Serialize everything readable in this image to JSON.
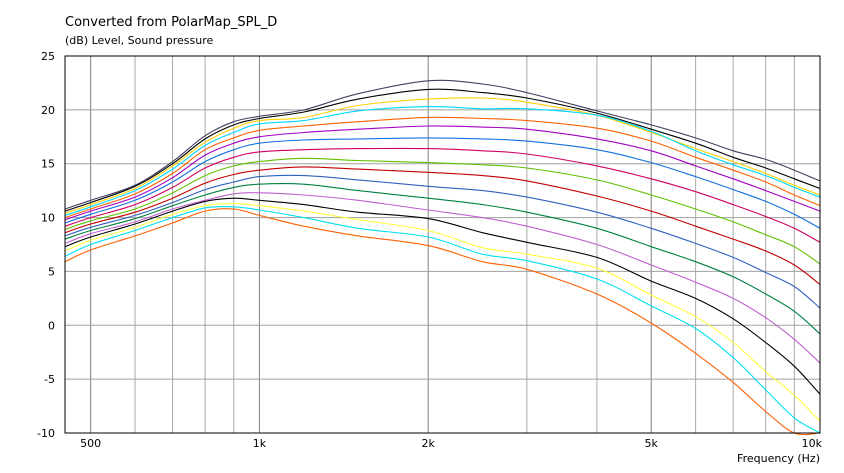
{
  "chart_data": {
    "type": "line",
    "title": "Converted from PolarMap_SPL_D",
    "ylabel": "(dB)  Level, Sound pressure",
    "xlabel": "Frequency  (Hz)",
    "xscale": "log",
    "xlim": [
      450,
      10000
    ],
    "ylim": [
      -10,
      25
    ],
    "grid": true,
    "legend": "none",
    "yticks": [
      -10,
      -5,
      0,
      5,
      10,
      15,
      20,
      25
    ],
    "xticks": [
      {
        "value": 500,
        "label": "500"
      },
      {
        "value": 1000,
        "label": "1k"
      },
      {
        "value": 2000,
        "label": "2k"
      },
      {
        "value": 5000,
        "label": "5k"
      },
      {
        "value": 10000,
        "label": "10k"
      }
    ],
    "x": [
      450,
      500,
      600,
      700,
      800,
      900,
      1000,
      1200,
      1500,
      2000,
      2500,
      3000,
      4000,
      5000,
      6000,
      7000,
      8000,
      9000,
      10000
    ],
    "series": [
      {
        "color": "#404060",
        "values": [
          10.8,
          11.6,
          13.0,
          15.2,
          17.6,
          18.9,
          19.4,
          20.0,
          21.5,
          22.7,
          22.4,
          21.6,
          19.9,
          18.6,
          17.4,
          16.2,
          15.4,
          14.4,
          13.4
        ]
      },
      {
        "color": "#000000",
        "values": [
          10.6,
          11.4,
          12.9,
          15.0,
          17.3,
          18.6,
          19.2,
          19.8,
          21.0,
          21.9,
          21.6,
          21.1,
          19.7,
          18.2,
          16.9,
          15.6,
          14.6,
          13.6,
          12.7
        ]
      },
      {
        "color": "#ffd000",
        "values": [
          10.4,
          11.2,
          12.7,
          14.8,
          17.0,
          18.3,
          19.0,
          19.3,
          20.4,
          21.0,
          21.1,
          20.7,
          19.5,
          17.9,
          16.4,
          15.2,
          14.1,
          13.0,
          12.1
        ]
      },
      {
        "color": "#00d8ff",
        "values": [
          10.2,
          11.0,
          12.5,
          14.5,
          16.7,
          17.9,
          18.7,
          19.0,
          19.9,
          20.3,
          20.1,
          20.1,
          19.5,
          18.0,
          16.2,
          14.9,
          13.9,
          12.8,
          11.9
        ]
      },
      {
        "color": "#ff6000",
        "values": [
          10.0,
          10.8,
          12.2,
          14.1,
          16.3,
          17.4,
          18.1,
          18.5,
          18.9,
          19.3,
          19.2,
          19.0,
          18.3,
          17.1,
          15.6,
          14.4,
          13.3,
          12.1,
          11.1
        ]
      },
      {
        "color": "#a000c0",
        "values": [
          9.8,
          10.6,
          11.9,
          13.7,
          15.8,
          16.9,
          17.5,
          17.9,
          18.2,
          18.5,
          18.4,
          18.2,
          17.3,
          16.2,
          14.8,
          13.6,
          12.5,
          11.5,
          10.6
        ]
      },
      {
        "color": "#1070e0",
        "values": [
          9.5,
          10.3,
          11.6,
          13.3,
          15.2,
          16.3,
          16.9,
          17.2,
          17.3,
          17.4,
          17.3,
          17.1,
          16.3,
          15.1,
          13.8,
          12.6,
          11.5,
          10.3,
          9.0
        ]
      },
      {
        "color": "#d00060",
        "values": [
          9.2,
          10.0,
          11.2,
          12.8,
          14.6,
          15.6,
          16.1,
          16.3,
          16.4,
          16.4,
          16.2,
          15.9,
          14.8,
          13.6,
          12.4,
          11.2,
          10.1,
          9.0,
          7.7
        ]
      },
      {
        "color": "#60c000",
        "values": [
          8.9,
          9.7,
          10.8,
          12.3,
          13.9,
          14.8,
          15.2,
          15.5,
          15.3,
          15.1,
          14.9,
          14.6,
          13.5,
          12.1,
          10.8,
          9.6,
          8.4,
          7.3,
          5.7
        ]
      },
      {
        "color": "#c00000",
        "values": [
          8.6,
          9.4,
          10.5,
          11.8,
          13.2,
          14.0,
          14.4,
          14.7,
          14.5,
          14.2,
          13.9,
          13.4,
          12.0,
          10.6,
          9.2,
          8.0,
          6.9,
          5.6,
          3.8
        ]
      },
      {
        "color": "#3060c0",
        "values": [
          8.3,
          9.1,
          10.2,
          11.4,
          12.6,
          13.3,
          13.8,
          13.9,
          13.5,
          12.9,
          12.5,
          11.9,
          10.5,
          9.0,
          7.6,
          6.3,
          4.9,
          3.6,
          1.6
        ]
      },
      {
        "color": "#008040",
        "values": [
          8.0,
          8.8,
          9.9,
          11.1,
          12.1,
          12.8,
          13.1,
          13.1,
          12.5,
          11.8,
          11.2,
          10.5,
          9.0,
          7.3,
          5.9,
          4.5,
          2.9,
          1.3,
          -0.8
        ]
      },
      {
        "color": "#c060d0",
        "values": [
          7.6,
          8.5,
          9.6,
          10.8,
          11.6,
          12.2,
          12.3,
          12.1,
          11.6,
          10.7,
          10.0,
          9.2,
          7.5,
          5.6,
          4.0,
          2.5,
          0.7,
          -1.3,
          -3.5
        ]
      },
      {
        "color": "#000000",
        "values": [
          7.3,
          8.2,
          9.4,
          10.6,
          11.5,
          11.8,
          11.6,
          11.2,
          10.5,
          9.9,
          8.6,
          7.7,
          6.3,
          4.1,
          2.5,
          0.6,
          -1.6,
          -3.8,
          -6.4
        ]
      },
      {
        "color": "#ffff40",
        "values": [
          6.9,
          7.9,
          9.1,
          10.3,
          11.1,
          11.3,
          11.1,
          10.6,
          9.8,
          8.8,
          7.2,
          6.6,
          5.3,
          2.8,
          0.8,
          -1.6,
          -4.3,
          -6.5,
          -8.9
        ]
      },
      {
        "color": "#00e0f0",
        "values": [
          6.4,
          7.5,
          8.8,
          10.0,
          10.9,
          11.0,
          10.7,
          10.0,
          9.0,
          8.2,
          6.6,
          6.0,
          4.3,
          1.8,
          -0.3,
          -3.0,
          -6.0,
          -8.6,
          -10.0
        ]
      },
      {
        "color": "#ff6000",
        "values": [
          5.9,
          7.0,
          8.3,
          9.5,
          10.6,
          10.8,
          10.2,
          9.2,
          8.3,
          7.4,
          5.9,
          5.2,
          2.9,
          0.2,
          -2.6,
          -5.3,
          -8.0,
          -10.0,
          -10.0
        ]
      }
    ]
  }
}
